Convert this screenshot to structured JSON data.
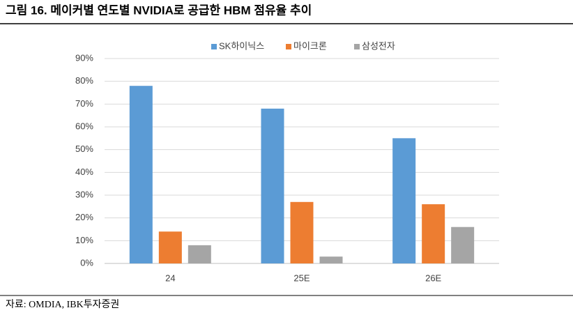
{
  "chart_data": {
    "type": "bar",
    "title": "그림 16. 메이커별 연도별 NVIDIA로 공급한 HBM 점유율 추이",
    "source": "자료: OMDIA, IBK투자증권",
    "categories": [
      "24",
      "25E",
      "26E"
    ],
    "series": [
      {
        "name": "SK하이닉스",
        "color": "#5b9bd5",
        "values": [
          78,
          68,
          55
        ]
      },
      {
        "name": "마이크론",
        "color": "#ed7d31",
        "values": [
          14,
          27,
          26
        ]
      },
      {
        "name": "삼성전자",
        "color": "#a5a5a5",
        "values": [
          8,
          3,
          16
        ]
      }
    ],
    "ylim": [
      0,
      90
    ],
    "yticks": [
      {
        "value": 0,
        "label": "0%"
      },
      {
        "value": 10,
        "label": "10%"
      },
      {
        "value": 20,
        "label": "20%"
      },
      {
        "value": 30,
        "label": "30%"
      },
      {
        "value": 40,
        "label": "40%"
      },
      {
        "value": 50,
        "label": "50%"
      },
      {
        "value": 60,
        "label": "60%"
      },
      {
        "value": 70,
        "label": "70%"
      },
      {
        "value": 80,
        "label": "80%"
      },
      {
        "value": 90,
        "label": "90%"
      }
    ],
    "grid": true,
    "legend": "top"
  }
}
